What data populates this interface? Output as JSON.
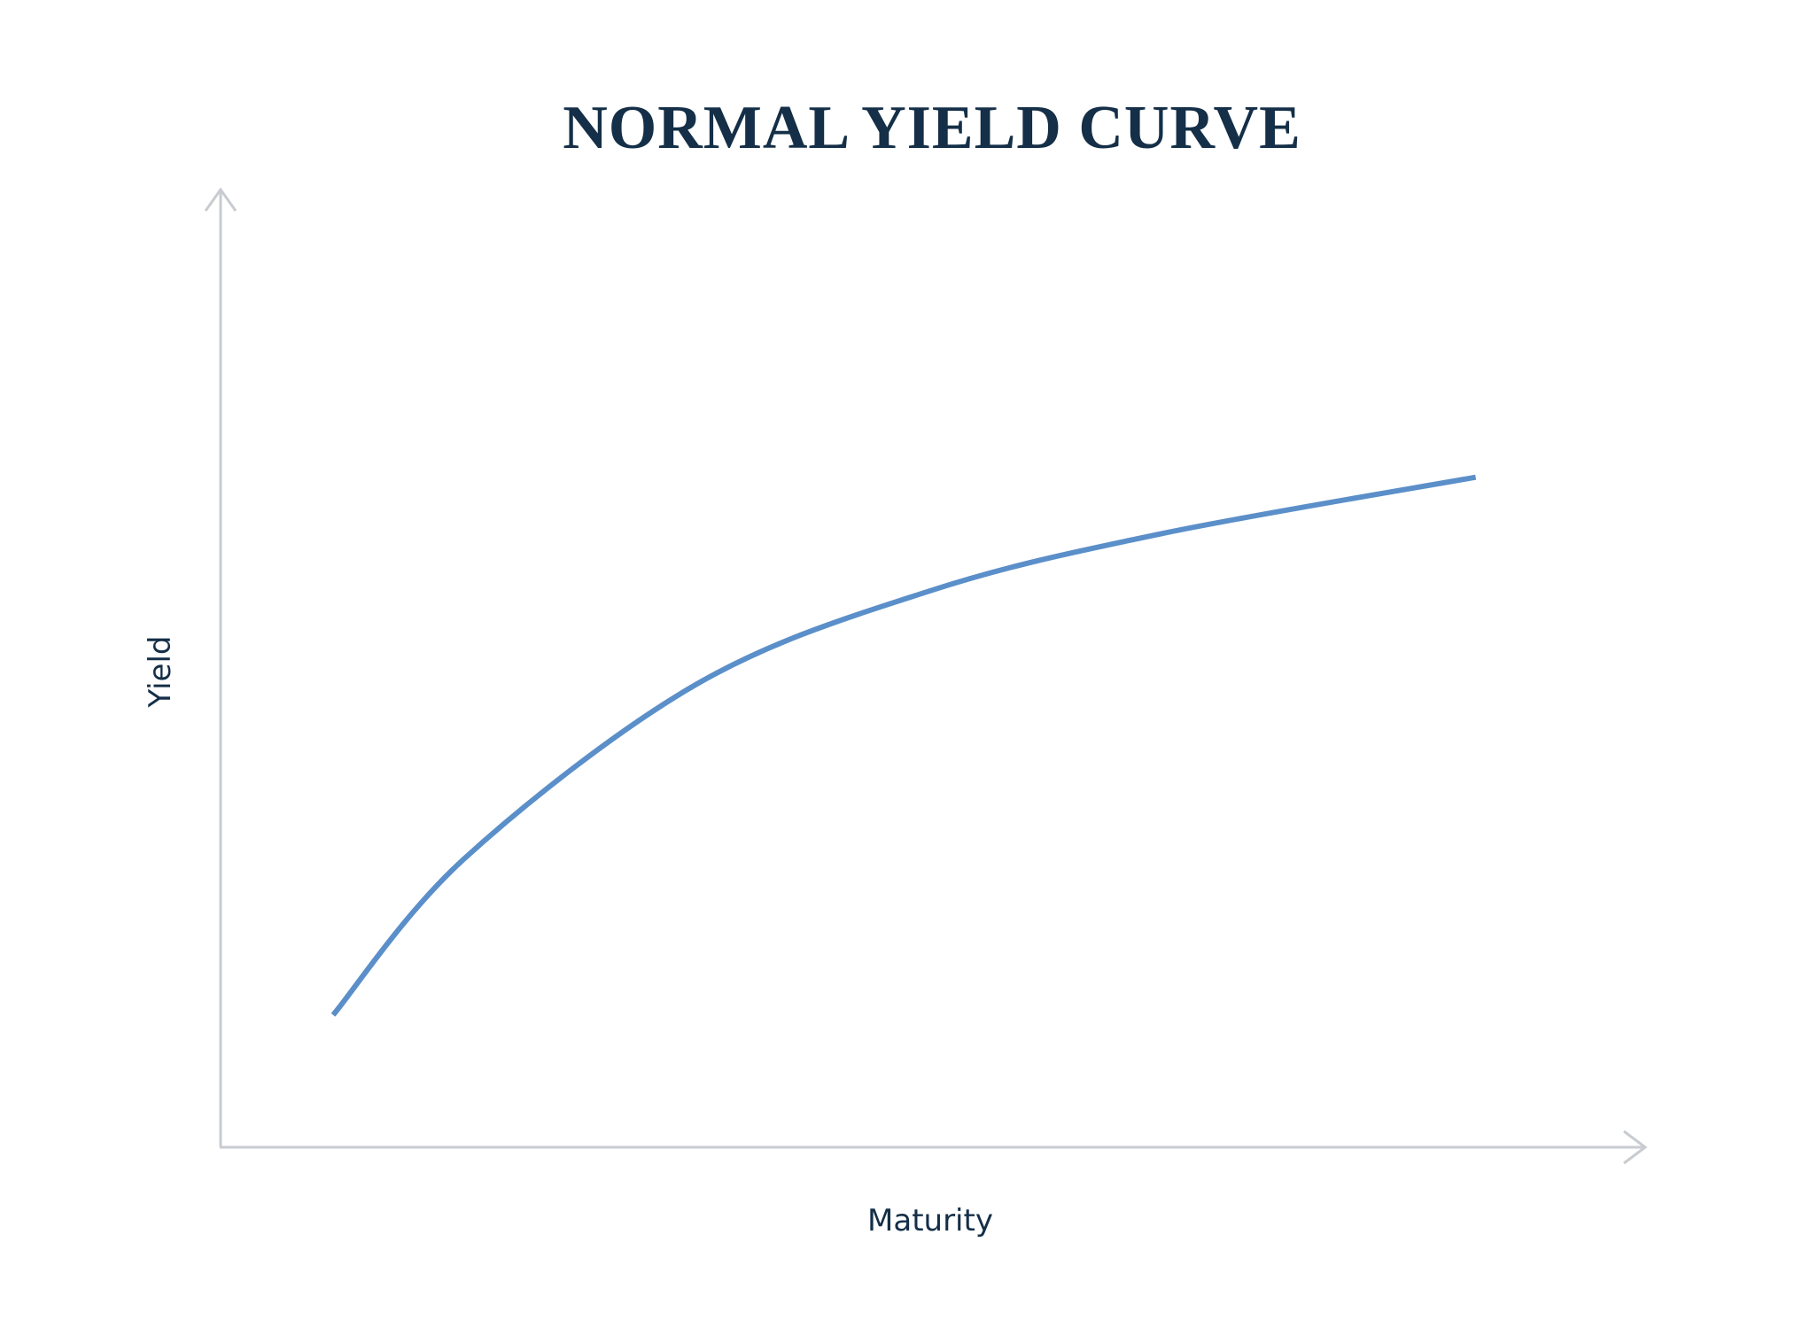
{
  "chart_data": {
    "type": "line",
    "title": "NORMAL YIELD CURVE",
    "xlabel": "Maturity",
    "ylabel": "Yield",
    "xlim": [
      0,
      100
    ],
    "ylim": [
      0,
      100
    ],
    "grid": false,
    "ticks": false,
    "series": [
      {
        "x": [
          7.9,
          17.1,
          33.4,
          49.7,
          66.0,
          88.1
        ],
        "y": [
          13.8,
          30.1,
          48.3,
          58.0,
          64.0,
          69.9
        ]
      }
    ],
    "colors": {
      "line": "#5b8fc9",
      "axis": "#c8ccd0",
      "text": "#142f47"
    }
  }
}
